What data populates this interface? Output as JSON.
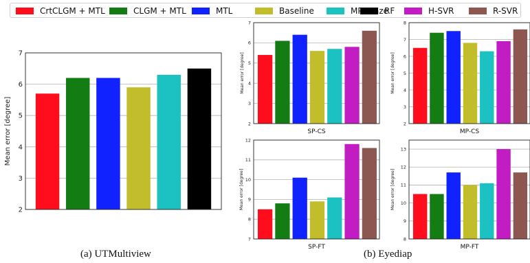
{
  "legend": {
    "items": [
      {
        "label": "CrtCLGM + MTL",
        "color": "#ff0d1c"
      },
      {
        "label": "CLGM + MTL",
        "color": "#137d13"
      },
      {
        "label": "MTL",
        "color": "#0f22ff"
      },
      {
        "label": "Baseline",
        "color": "#c2bd2a"
      },
      {
        "label": "MPIIGaze",
        "color": "#1cc1c1"
      },
      {
        "label": "RF",
        "color": "#000000"
      },
      {
        "label": "H-SVR",
        "color": "#c21dc2"
      },
      {
        "label": "R-SVR",
        "color": "#8b5750"
      }
    ]
  },
  "captions": {
    "left": "(a) UTMultiview",
    "right": "(b) Eyediap"
  },
  "chart_data": [
    {
      "type": "bar",
      "title": "",
      "xlabel": "",
      "ylabel": "Mean error [degree]",
      "ylim": [
        2,
        7
      ],
      "yticks": [
        "2",
        "3",
        "4",
        "5",
        "6",
        "7"
      ],
      "grid": "horizontal",
      "categories": [
        "CrtCLGM + MTL",
        "CLGM + MTL",
        "MTL",
        "Baseline",
        "MPIIGaze",
        "RF"
      ],
      "values": [
        5.7,
        6.2,
        6.2,
        5.9,
        6.3,
        6.5
      ],
      "colors": [
        "#ff0d1c",
        "#137d13",
        "#0f22ff",
        "#c2bd2a",
        "#1cc1c1",
        "#000000"
      ]
    },
    {
      "type": "bar",
      "title": "SP-CS",
      "xlabel": "SP-CS",
      "ylabel": "Mean error [degree]",
      "ylim": [
        2,
        7
      ],
      "yticks": [
        "2",
        "3",
        "4",
        "5",
        "6",
        "7"
      ],
      "grid": "horizontal",
      "categories": [
        "CrtCLGM + MTL",
        "CLGM + MTL",
        "MTL",
        "Baseline",
        "MPIIGaze",
        "H-SVR",
        "R-SVR"
      ],
      "values": [
        5.4,
        6.1,
        6.4,
        5.6,
        5.7,
        5.8,
        6.6
      ],
      "colors": [
        "#ff0d1c",
        "#137d13",
        "#0f22ff",
        "#c2bd2a",
        "#1cc1c1",
        "#c21dc2",
        "#8b5750"
      ]
    },
    {
      "type": "bar",
      "title": "MP-CS",
      "xlabel": "MP-CS",
      "ylabel": "Mean error [degree]",
      "ylim": [
        2,
        8
      ],
      "yticks": [
        "2",
        "3",
        "4",
        "5",
        "6",
        "7",
        "8"
      ],
      "grid": "horizontal",
      "categories": [
        "CrtCLGM + MTL",
        "CLGM + MTL",
        "MTL",
        "Baseline",
        "MPIIGaze",
        "H-SVR",
        "R-SVR"
      ],
      "values": [
        6.5,
        7.4,
        7.5,
        6.8,
        6.3,
        6.9,
        7.6
      ],
      "colors": [
        "#ff0d1c",
        "#137d13",
        "#0f22ff",
        "#c2bd2a",
        "#1cc1c1",
        "#c21dc2",
        "#8b5750"
      ]
    },
    {
      "type": "bar",
      "title": "SP-FT",
      "xlabel": "SP-FT",
      "ylabel": "Mean error [degree]",
      "ylim": [
        7,
        12
      ],
      "yticks": [
        "7",
        "8",
        "9",
        "10",
        "11",
        "12"
      ],
      "grid": "horizontal",
      "categories": [
        "CrtCLGM + MTL",
        "CLGM + MTL",
        "MTL",
        "Baseline",
        "MPIIGaze",
        "H-SVR",
        "R-SVR"
      ],
      "values": [
        8.5,
        8.8,
        10.1,
        8.9,
        9.1,
        11.8,
        11.6
      ],
      "colors": [
        "#ff0d1c",
        "#137d13",
        "#0f22ff",
        "#c2bd2a",
        "#1cc1c1",
        "#c21dc2",
        "#8b5750"
      ]
    },
    {
      "type": "bar",
      "title": "MP-FT",
      "xlabel": "MP-FT",
      "ylabel": "Mean error [degree]",
      "ylim": [
        8,
        13.5
      ],
      "yticks": [
        "8",
        "9",
        "10",
        "11",
        "12",
        "13"
      ],
      "grid": "horizontal",
      "categories": [
        "CrtCLGM + MTL",
        "CLGM + MTL",
        "MTL",
        "Baseline",
        "MPIIGaze",
        "H-SVR",
        "R-SVR"
      ],
      "values": [
        10.5,
        10.5,
        11.7,
        11.0,
        11.1,
        13.0,
        11.7
      ],
      "colors": [
        "#ff0d1c",
        "#137d13",
        "#0f22ff",
        "#c2bd2a",
        "#1cc1c1",
        "#c21dc2",
        "#8b5750"
      ]
    }
  ]
}
